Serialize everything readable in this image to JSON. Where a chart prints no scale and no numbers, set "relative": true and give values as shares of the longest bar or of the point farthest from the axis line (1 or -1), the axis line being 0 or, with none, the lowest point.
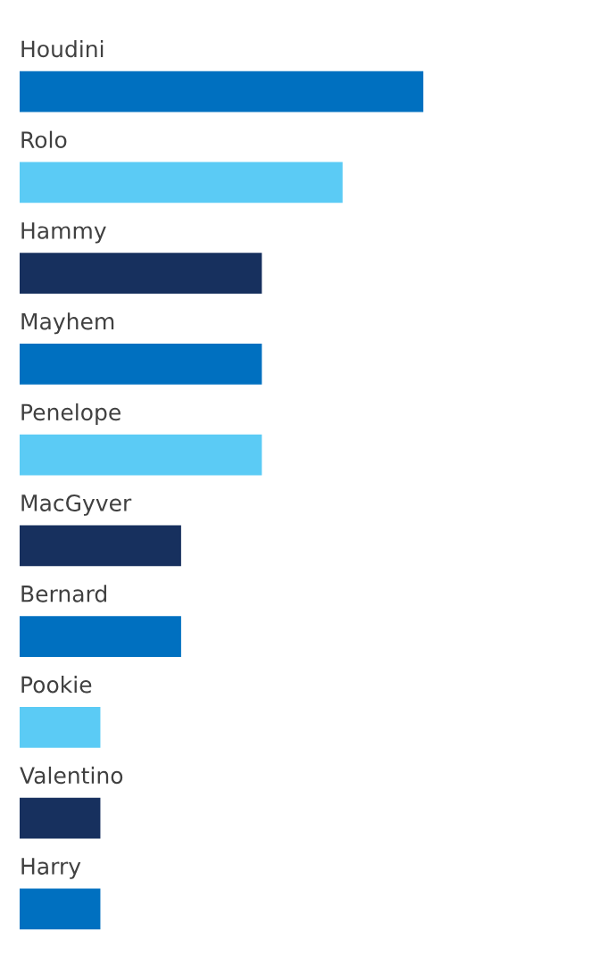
{
  "chart_data": {
    "type": "bar",
    "orientation": "horizontal",
    "relative": true,
    "categories": [
      "Houdini",
      "Rolo",
      "Hammy",
      "Mayhem",
      "Penelope",
      "MacGyver",
      "Bernard",
      "Pookie",
      "Valentino",
      "Harry"
    ],
    "values": [
      1,
      0.8,
      0.6,
      0.6,
      0.6,
      0.4,
      0.4,
      0.2,
      0.2,
      0.2
    ],
    "colors": [
      "#0070c0",
      "#5bcbf5",
      "#17305e",
      "#0070c0",
      "#5bcbf5",
      "#17305e",
      "#0070c0",
      "#5bcbf5",
      "#17305e",
      "#0070c0"
    ],
    "legend": false
  }
}
